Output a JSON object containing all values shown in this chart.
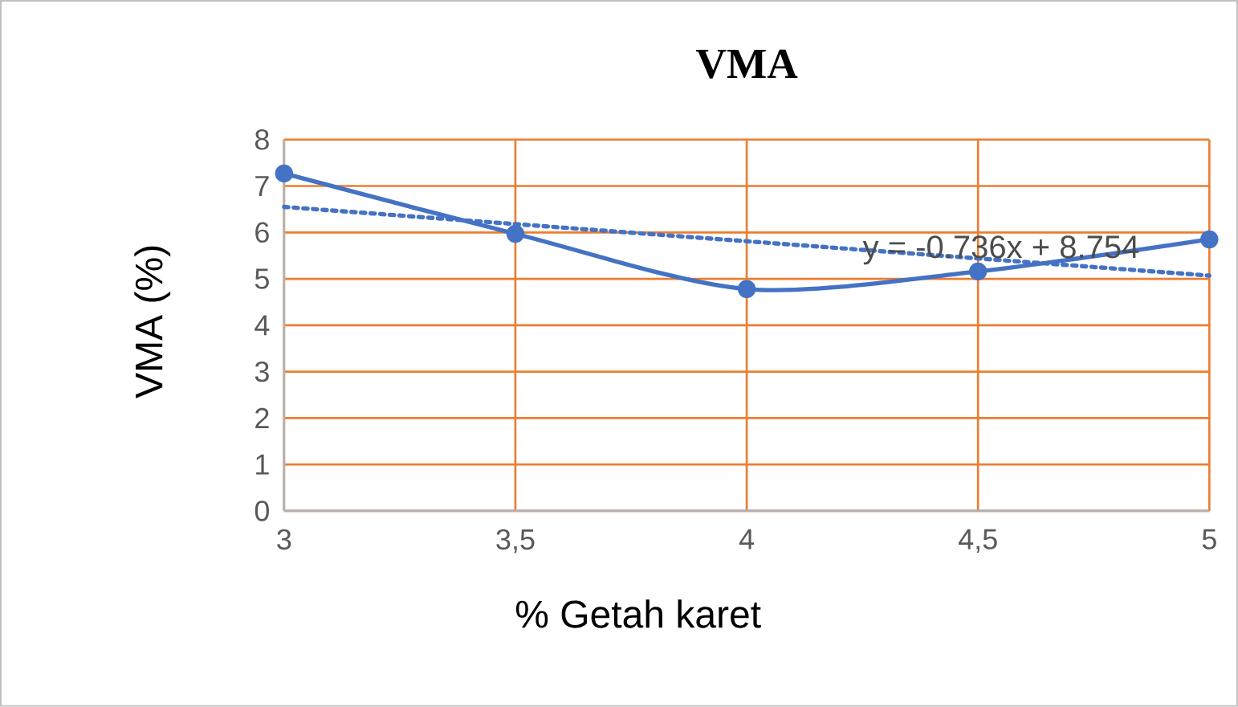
{
  "chart_data": {
    "type": "line",
    "title": "VMA",
    "xlabel": "% Getah karet",
    "ylabel": "VMA (%)",
    "x": [
      3,
      3.5,
      4,
      4.5,
      5
    ],
    "series": [
      {
        "color": "#4472c4",
        "values": [
          7.27,
          5.97,
          4.78,
          5.16,
          5.85
        ],
        "marker": "circle",
        "line_style": "solid"
      },
      {
        "type": "line",
        "color": "#4472c4",
        "x": [
          3,
          5
        ],
        "values": [
          6.55,
          5.07
        ],
        "marker": "none",
        "line_style": "dotted"
      }
    ],
    "xlim": [
      3,
      5
    ],
    "ylim": [
      0,
      8
    ],
    "xticks": [
      3,
      {
        "value": 3.5,
        "label": "3,5"
      },
      4,
      {
        "value": 4.5,
        "label": "4,5"
      },
      5
    ],
    "yticks": [
      0,
      1,
      2,
      3,
      4,
      5,
      6,
      7,
      8
    ],
    "grid": true,
    "annotations": [
      {
        "text": "y = -0.736x + 8.754",
        "x": 4.55,
        "y": 5.62
      }
    ]
  }
}
